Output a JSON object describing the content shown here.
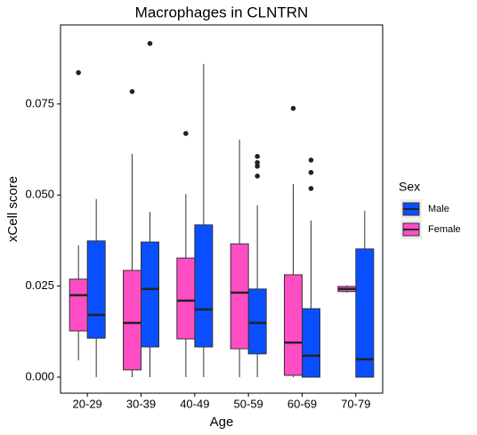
{
  "chart_data": {
    "type": "box",
    "title": "Macrophages in CLNTRN",
    "x_label": "Age",
    "y_label": "xCell score",
    "categories": [
      "20-29",
      "30-39",
      "40-49",
      "50-59",
      "60-69",
      "70-79"
    ],
    "legend_title": "Sex",
    "legend_position": "right",
    "ylim": [
      -0.0044,
      0.0967
    ],
    "yticks": [
      {
        "value": 0,
        "label": "0.000"
      },
      {
        "value": 0.025,
        "label": "0.025"
      },
      {
        "value": 0.05,
        "label": "0.050"
      },
      {
        "value": 0.075,
        "label": "0.075"
      }
    ],
    "grid": false,
    "series": [
      {
        "name": "Male",
        "color": "#0a4fff",
        "min": [
          0,
          0,
          0,
          0,
          0,
          0
        ],
        "q1": [
          0.0107,
          0.0083,
          0.0083,
          0.0064,
          0,
          0
        ],
        "median": [
          0.0171,
          0.0242,
          0.0186,
          0.0149,
          0.0059,
          0.0049
        ],
        "q3": [
          0.0374,
          0.0371,
          0.0418,
          0.0242,
          0.0188,
          0.0352
        ],
        "max": [
          0.0489,
          0.0454,
          0.086,
          0.0472,
          0.043,
          0.0457
        ],
        "outliers": [
          [],
          [
            0.0916
          ],
          [],
          [
            0.0606,
            0.0589,
            0.0579,
            0.0552
          ],
          [
            0.0596,
            0.0562,
            0.0518
          ],
          []
        ]
      },
      {
        "name": "Female",
        "color": "#ff4dc4",
        "min": [
          0.0046,
          0,
          0,
          0,
          0,
          0.0232
        ],
        "q1": [
          0.0127,
          0.002,
          0.0105,
          0.0078,
          0.0005,
          0.0235
        ],
        "median": [
          0.0225,
          0.0149,
          0.021,
          0.0232,
          0.0095,
          0.0242
        ],
        "q3": [
          0.0269,
          0.0293,
          0.0327,
          0.0366,
          0.0281,
          0.0249
        ],
        "max": [
          0.0362,
          0.0613,
          0.0503,
          0.0652,
          0.053,
          0.0252
        ],
        "outliers": [
          [
            0.0836
          ],
          [
            0.0784
          ],
          [
            0.0669
          ],
          [],
          [
            0.0738
          ],
          []
        ]
      }
    ]
  }
}
